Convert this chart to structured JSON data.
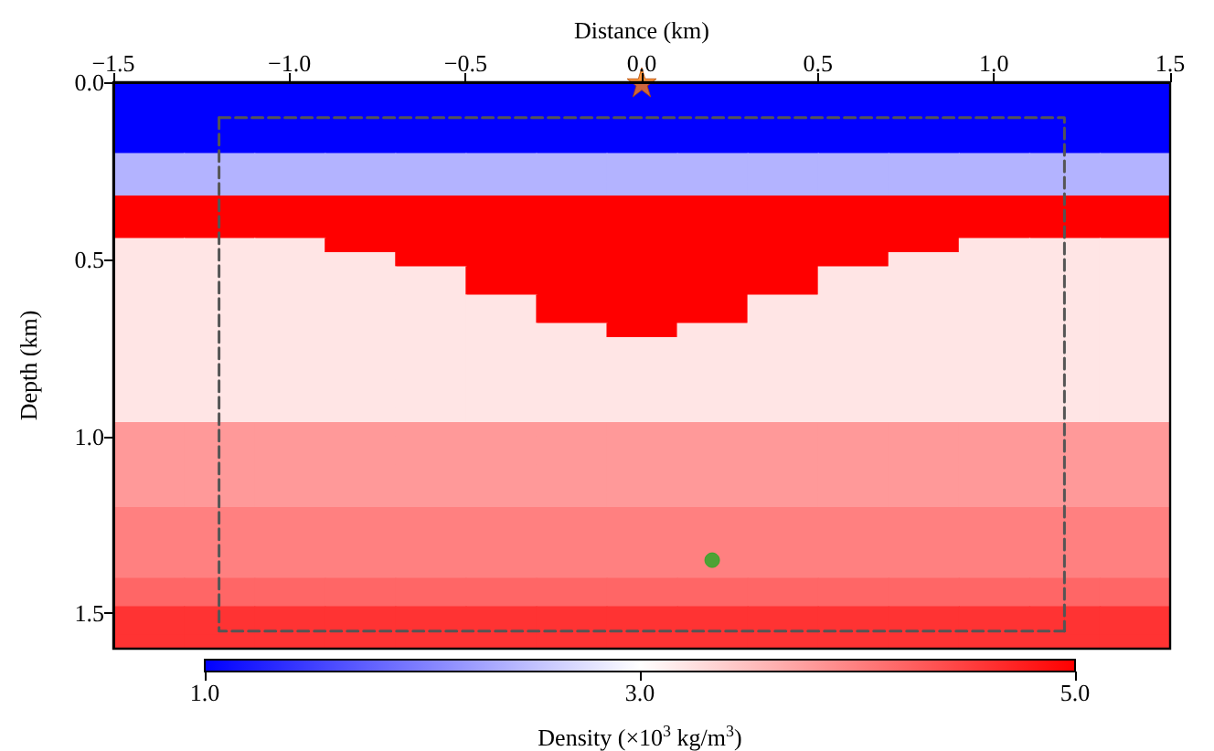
{
  "chart_data": {
    "type": "heatmap",
    "xlabel": "Distance (km)",
    "ylabel": "Depth (km)",
    "clabel": "Density (×10$^{3}$ kg/m$^{3}$)",
    "xlim": [
      -1.5,
      1.5
    ],
    "xticks": [
      -1.5,
      {
        "value": -1,
        "label": "−1.0"
      },
      -0.5,
      {
        "value": 0,
        "label": "0.0"
      },
      0.5,
      {
        "value": 1,
        "label": "1.0"
      },
      1.5
    ],
    "ylim": [
      1.6,
      0
    ],
    "yticks": [
      {
        "value": 0,
        "label": "0.0"
      },
      0.5,
      {
        "value": 1,
        "label": "1.0"
      },
      1.5
    ],
    "clim": [
      1,
      5
    ],
    "cticks": [
      {
        "value": 1,
        "label": "1.0"
      },
      {
        "value": 3,
        "label": "3.0"
      },
      {
        "value": 5,
        "label": "5.0"
      }
    ],
    "grid": false,
    "x": [
      -1.4,
      -1.2,
      -1.0,
      -0.8,
      -0.6,
      -0.4,
      -0.2,
      0,
      0.2,
      0.4,
      0.6,
      0.8,
      1.0,
      1.2,
      1.4
    ],
    "cells": [
      [
        1.0,
        1.0,
        1.0,
        1.0,
        1.0,
        1.0,
        1.0,
        1.0,
        1.0,
        1.0,
        1.0,
        1.0,
        1.0,
        1.0,
        1.0
      ],
      [
        1.0,
        1.0,
        1.0,
        1.0,
        1.0,
        1.0,
        1.0,
        1.0,
        1.0,
        1.0,
        1.0,
        1.0,
        1.0,
        1.0,
        1.0
      ],
      [
        1.0,
        1.0,
        1.0,
        1.0,
        1.0,
        1.0,
        1.0,
        1.0,
        1.0,
        1.0,
        1.0,
        1.0,
        1.0,
        1.0,
        1.0
      ],
      [
        1.0,
        1.0,
        1.0,
        1.0,
        1.0,
        1.0,
        1.0,
        1.0,
        1.0,
        1.0,
        1.0,
        1.0,
        1.0,
        1.0,
        1.0
      ],
      [
        1.0,
        1.0,
        1.0,
        1.0,
        1.0,
        1.0,
        1.0,
        1.0,
        1.0,
        1.0,
        1.0,
        1.0,
        1.0,
        1.0,
        1.0
      ],
      [
        2.4,
        2.4,
        2.4,
        2.4,
        2.4,
        2.4,
        2.4,
        2.4,
        2.4,
        2.4,
        2.4,
        2.4,
        2.4,
        2.4,
        2.4
      ],
      [
        2.4,
        2.4,
        2.4,
        2.4,
        2.4,
        2.4,
        2.4,
        2.4,
        2.4,
        2.4,
        2.4,
        2.4,
        2.4,
        2.4,
        2.4
      ],
      [
        2.4,
        2.4,
        2.4,
        2.4,
        2.4,
        2.4,
        2.4,
        2.4,
        2.4,
        2.4,
        2.4,
        2.4,
        2.4,
        2.4,
        2.4
      ],
      [
        5.0,
        5.0,
        5.0,
        5.0,
        5.0,
        5.0,
        5.0,
        5.0,
        5.0,
        5.0,
        5.0,
        5.0,
        5.0,
        5.0,
        5.0
      ],
      [
        5.0,
        5.0,
        5.0,
        5.0,
        5.0,
        5.0,
        5.0,
        5.0,
        5.0,
        5.0,
        5.0,
        5.0,
        5.0,
        5.0,
        5.0
      ],
      [
        5.0,
        5.0,
        5.0,
        5.0,
        5.0,
        5.0,
        5.0,
        5.0,
        5.0,
        5.0,
        5.0,
        5.0,
        5.0,
        5.0,
        5.0
      ],
      [
        3.2,
        3.2,
        3.2,
        5.0,
        5.0,
        5.0,
        5.0,
        5.0,
        5.0,
        5.0,
        5.0,
        5.0,
        3.2,
        3.2,
        3.2
      ],
      [
        3.2,
        3.2,
        3.2,
        3.2,
        5.0,
        5.0,
        5.0,
        5.0,
        5.0,
        5.0,
        5.0,
        3.2,
        3.2,
        3.2,
        3.2
      ],
      [
        3.2,
        3.2,
        3.2,
        3.2,
        3.2,
        5.0,
        5.0,
        5.0,
        5.0,
        5.0,
        3.2,
        3.2,
        3.2,
        3.2,
        3.2
      ],
      [
        3.2,
        3.2,
        3.2,
        3.2,
        3.2,
        5.0,
        5.0,
        5.0,
        5.0,
        5.0,
        3.2,
        3.2,
        3.2,
        3.2,
        3.2
      ],
      [
        3.2,
        3.2,
        3.2,
        3.2,
        3.2,
        3.2,
        5.0,
        5.0,
        5.0,
        3.2,
        3.2,
        3.2,
        3.2,
        3.2,
        3.2
      ],
      [
        3.2,
        3.2,
        3.2,
        3.2,
        3.2,
        3.2,
        5.0,
        5.0,
        5.0,
        3.2,
        3.2,
        3.2,
        3.2,
        3.2,
        3.2
      ],
      [
        3.2,
        3.2,
        3.2,
        3.2,
        3.2,
        3.2,
        3.2,
        5.0,
        3.2,
        3.2,
        3.2,
        3.2,
        3.2,
        3.2,
        3.2
      ],
      [
        3.2,
        3.2,
        3.2,
        3.2,
        3.2,
        3.2,
        3.2,
        3.2,
        3.2,
        3.2,
        3.2,
        3.2,
        3.2,
        3.2,
        3.2
      ],
      [
        3.2,
        3.2,
        3.2,
        3.2,
        3.2,
        3.2,
        3.2,
        3.2,
        3.2,
        3.2,
        3.2,
        3.2,
        3.2,
        3.2,
        3.2
      ],
      [
        3.2,
        3.2,
        3.2,
        3.2,
        3.2,
        3.2,
        3.2,
        3.2,
        3.2,
        3.2,
        3.2,
        3.2,
        3.2,
        3.2,
        3.2
      ],
      [
        3.2,
        3.2,
        3.2,
        3.2,
        3.2,
        3.2,
        3.2,
        3.2,
        3.2,
        3.2,
        3.2,
        3.2,
        3.2,
        3.2,
        3.2
      ],
      [
        3.2,
        3.2,
        3.2,
        3.2,
        3.2,
        3.2,
        3.2,
        3.2,
        3.2,
        3.2,
        3.2,
        3.2,
        3.2,
        3.2,
        3.2
      ],
      [
        3.2,
        3.2,
        3.2,
        3.2,
        3.2,
        3.2,
        3.2,
        3.2,
        3.2,
        3.2,
        3.2,
        3.2,
        3.2,
        3.2,
        3.2
      ],
      [
        3.8,
        3.8,
        3.8,
        3.8,
        3.8,
        3.8,
        3.8,
        3.8,
        3.8,
        3.8,
        3.8,
        3.8,
        3.8,
        3.8,
        3.8
      ],
      [
        3.8,
        3.8,
        3.8,
        3.8,
        3.8,
        3.8,
        3.8,
        3.8,
        3.8,
        3.8,
        3.8,
        3.8,
        3.8,
        3.8,
        3.8
      ],
      [
        3.8,
        3.8,
        3.8,
        3.8,
        3.8,
        3.8,
        3.8,
        3.8,
        3.8,
        3.8,
        3.8,
        3.8,
        3.8,
        3.8,
        3.8
      ],
      [
        3.8,
        3.8,
        3.8,
        3.8,
        3.8,
        3.8,
        3.8,
        3.8,
        3.8,
        3.8,
        3.8,
        3.8,
        3.8,
        3.8,
        3.8
      ],
      [
        3.8,
        3.8,
        3.8,
        3.8,
        3.8,
        3.8,
        3.8,
        3.8,
        3.8,
        3.8,
        3.8,
        3.8,
        3.8,
        3.8,
        3.8
      ],
      [
        3.8,
        3.8,
        3.8,
        3.8,
        3.8,
        3.8,
        3.8,
        3.8,
        3.8,
        3.8,
        3.8,
        3.8,
        3.8,
        3.8,
        3.8
      ],
      [
        4.0,
        4.0,
        4.0,
        4.0,
        4.0,
        4.0,
        4.0,
        4.0,
        4.0,
        4.0,
        4.0,
        4.0,
        4.0,
        4.0,
        4.0
      ],
      [
        4.0,
        4.0,
        4.0,
        4.0,
        4.0,
        4.0,
        4.0,
        4.0,
        4.0,
        4.0,
        4.0,
        4.0,
        4.0,
        4.0,
        4.0
      ],
      [
        4.0,
        4.0,
        4.0,
        4.0,
        4.0,
        4.0,
        4.0,
        4.0,
        4.0,
        4.0,
        4.0,
        4.0,
        4.0,
        4.0,
        4.0
      ],
      [
        4.0,
        4.0,
        4.0,
        4.0,
        4.0,
        4.0,
        4.0,
        4.0,
        4.0,
        4.0,
        4.0,
        4.0,
        4.0,
        4.0,
        4.0
      ],
      [
        4.0,
        4.0,
        4.0,
        4.0,
        4.0,
        4.0,
        4.0,
        4.0,
        4.0,
        4.0,
        4.0,
        4.0,
        4.0,
        4.0,
        4.0
      ],
      [
        4.2,
        4.2,
        4.2,
        4.2,
        4.2,
        4.2,
        4.2,
        4.2,
        4.2,
        4.2,
        4.2,
        4.2,
        4.2,
        4.2,
        4.2
      ],
      [
        4.2,
        4.2,
        4.2,
        4.2,
        4.2,
        4.2,
        4.2,
        4.2,
        4.2,
        4.2,
        4.2,
        4.2,
        4.2,
        4.2,
        4.2
      ],
      [
        4.6,
        4.6,
        4.6,
        4.6,
        4.6,
        4.6,
        4.6,
        4.6,
        4.6,
        4.6,
        4.6,
        4.6,
        4.6,
        4.6,
        4.6
      ],
      [
        4.6,
        4.6,
        4.6,
        4.6,
        4.6,
        4.6,
        4.6,
        4.6,
        4.6,
        4.6,
        4.6,
        4.6,
        4.6,
        4.6,
        4.6
      ],
      [
        4.6,
        4.6,
        4.6,
        4.6,
        4.6,
        4.6,
        4.6,
        4.6,
        4.6,
        4.6,
        4.6,
        4.6,
        4.6,
        4.6,
        4.6
      ]
    ],
    "series": [
      {
        "type": "line",
        "x": [
          -1.2,
          1.2,
          1.2
        ],
        "values": [
          0.1,
          0.1,
          1.55
        ],
        "color": "#555555",
        "line_style": "dashed",
        "marker": "none"
      },
      {
        "type": "line",
        "x": [
          -1.2,
          -1.2,
          1.2
        ],
        "values": [
          0.1,
          1.55,
          1.55
        ],
        "color": "#555555",
        "line_style": "dashed",
        "marker": "none"
      },
      {
        "type": "scatter",
        "x": [
          0
        ],
        "values": [
          0
        ],
        "color": "#ff7f0e",
        "marker": "star"
      },
      {
        "type": "scatter",
        "x": [
          0.2
        ],
        "values": [
          1.35
        ],
        "color": "#22aa22",
        "marker": "circle"
      }
    ]
  }
}
